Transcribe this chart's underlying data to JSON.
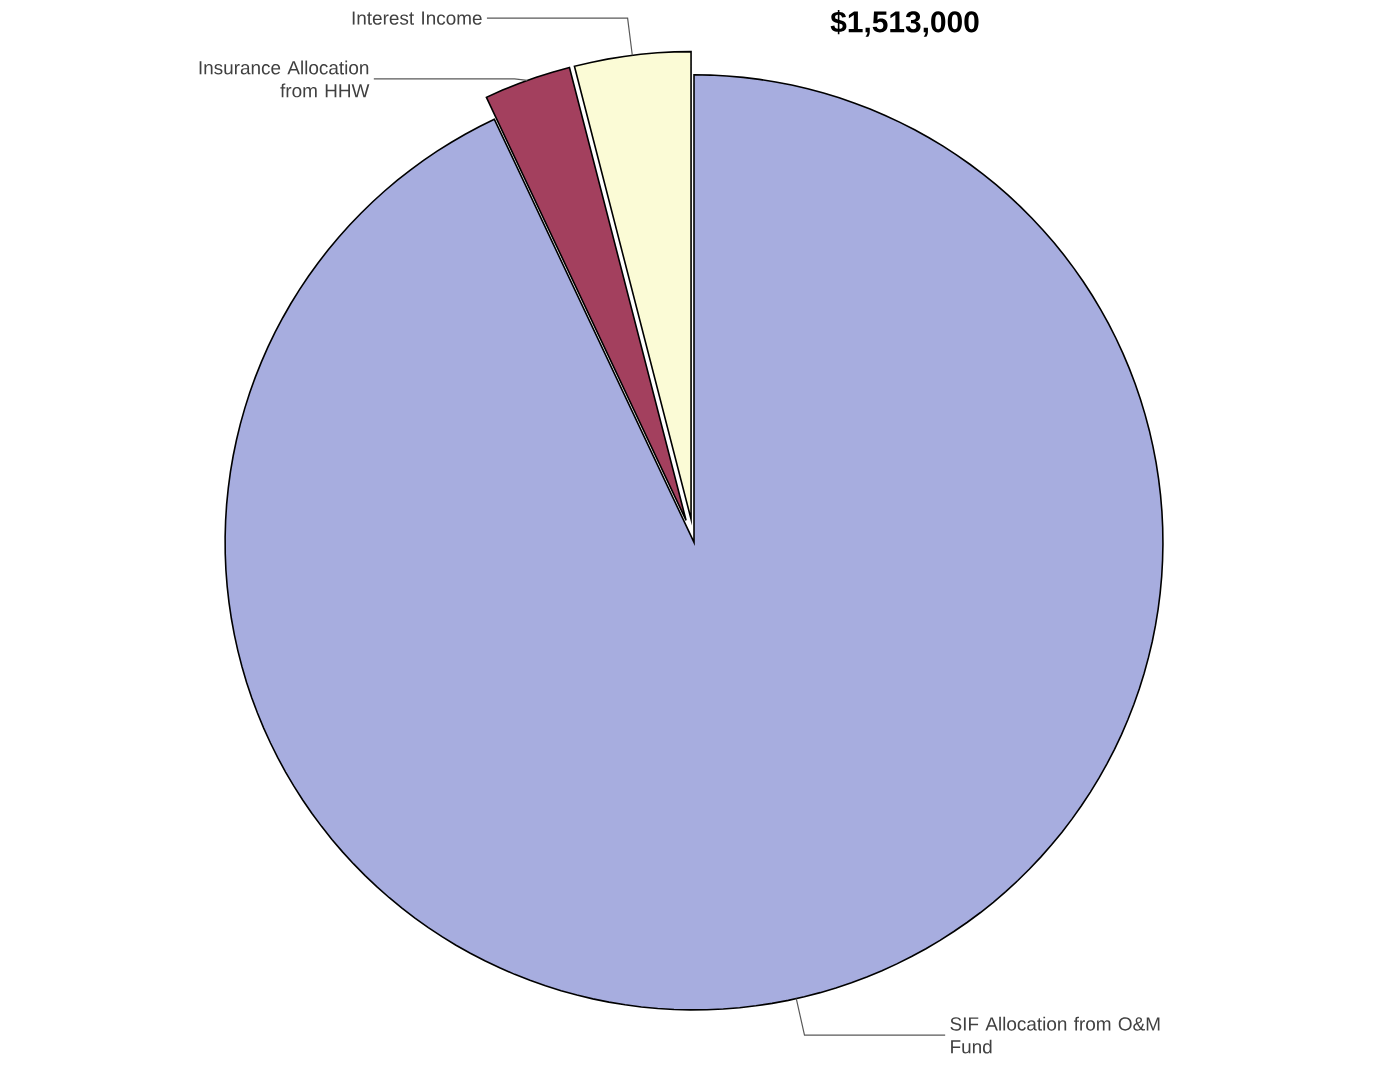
{
  "chart_data": {
    "type": "pie",
    "title": "$1,513,000",
    "categories": [
      "Interest Income",
      "Insurance Allocation from HHW",
      "SIF Allocation from O&M Fund"
    ],
    "values": [
      4,
      3,
      93
    ],
    "colors": [
      "#fbfbd6",
      "#a3405e",
      "#a7addf"
    ]
  }
}
